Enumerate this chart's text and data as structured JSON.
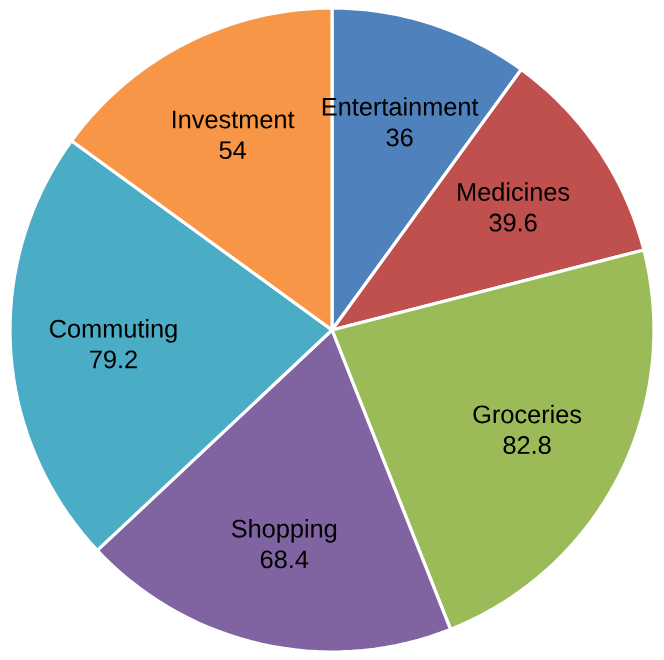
{
  "chart_data": {
    "type": "pie",
    "categories": [
      "Entertainment",
      "Medicines",
      "Groceries",
      "Shopping",
      "Commuting",
      "Investment"
    ],
    "values": [
      36,
      39.6,
      82.8,
      68.4,
      79.2,
      54
    ],
    "colors": [
      "#4f81bd",
      "#c0504d",
      "#9bbb59",
      "#8064a2",
      "#4bacc6",
      "#f79646"
    ],
    "data_labels": true
  }
}
